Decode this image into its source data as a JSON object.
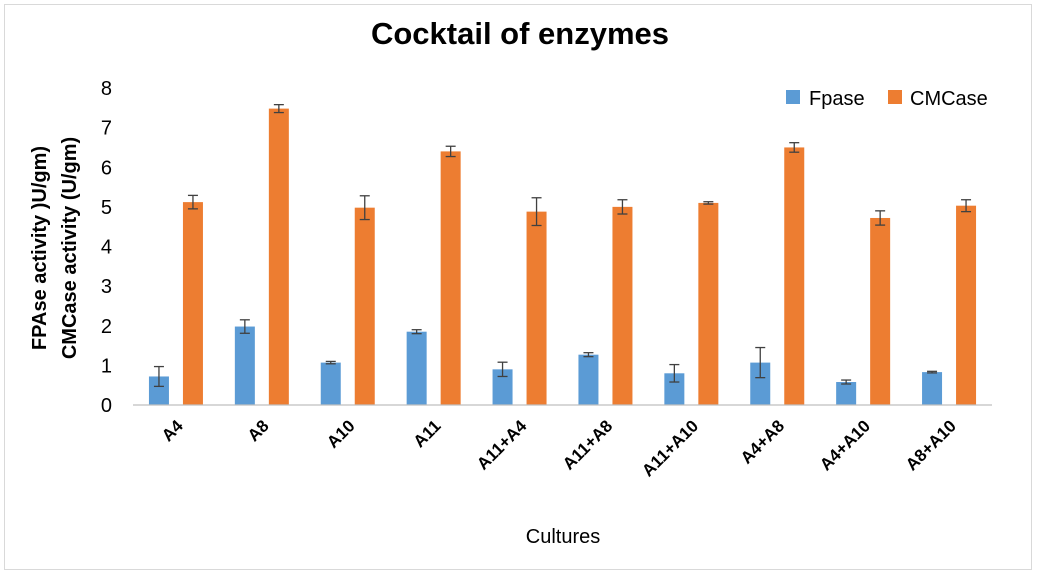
{
  "chart_data": {
    "type": "bar",
    "title": "Cocktail of enzymes",
    "xlabel": "Cultures",
    "ylabel_lines": [
      "FPAse activity  )U/gm)",
      "CMCase activity  (U/gm)"
    ],
    "categories": [
      "A4",
      "A8",
      "A10",
      "A11",
      "A11+A4",
      "A11+A8",
      "A11+A10",
      "A4+A8",
      "A4+A10",
      "A8+A10"
    ],
    "series": [
      {
        "name": "Fpase",
        "color": "#5b9bd5",
        "values": [
          0.72,
          1.98,
          1.07,
          1.85,
          0.9,
          1.27,
          0.8,
          1.07,
          0.58,
          0.83
        ],
        "errors": [
          0.25,
          0.17,
          0.03,
          0.05,
          0.18,
          0.05,
          0.22,
          0.38,
          0.05,
          0.02
        ]
      },
      {
        "name": "CMCase",
        "color": "#ed7d31",
        "values": [
          5.12,
          7.48,
          4.98,
          6.4,
          4.88,
          5.0,
          5.1,
          6.5,
          4.72,
          5.03
        ],
        "errors": [
          0.17,
          0.1,
          0.3,
          0.13,
          0.35,
          0.18,
          0.03,
          0.12,
          0.18,
          0.15
        ]
      }
    ],
    "ylim": [
      0,
      8
    ],
    "yticks": [
      0,
      1,
      2,
      3,
      4,
      5,
      6,
      7,
      8
    ],
    "grid": false,
    "legend_position": "top-right"
  }
}
